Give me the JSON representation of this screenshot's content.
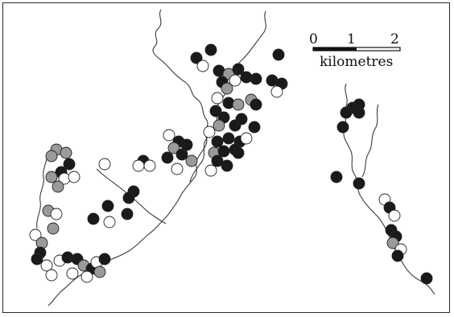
{
  "scale_bar": {
    "ticks": [
      "0",
      "1",
      "2"
    ],
    "unit": "kilometres"
  },
  "legend_colors": {
    "black": "#1a1a1a",
    "grey": "#9a9a9a",
    "white": "#ffffff",
    "stream": "#3a3a3a"
  }
}
